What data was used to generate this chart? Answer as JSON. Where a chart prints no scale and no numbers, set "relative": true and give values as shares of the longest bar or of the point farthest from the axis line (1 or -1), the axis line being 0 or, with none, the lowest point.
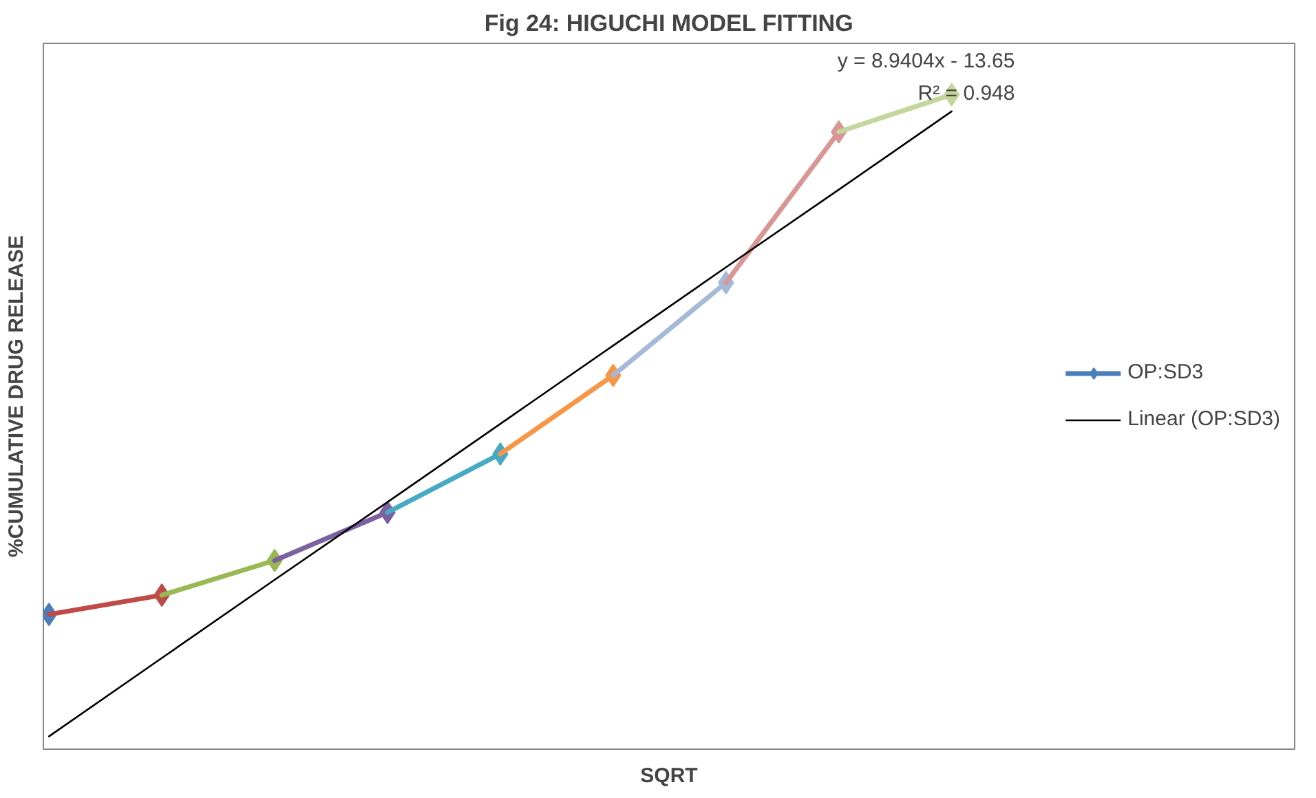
{
  "chart_data": {
    "type": "line",
    "title": "Fig 24: HIGUCHI MODEL FITTING",
    "xlabel": "SQRT",
    "ylabel": "%CUMULATIVE DRUG RELEASE",
    "relative": true,
    "marker": "diamond",
    "legend": "right",
    "grid": false,
    "categories": [
      null,
      null,
      null,
      null,
      null,
      null,
      null,
      null,
      null
    ],
    "series": [
      {
        "name": "OP:SD3",
        "color": "#4a7ebb",
        "values": [
          0.19,
          null,
          null,
          null,
          null,
          null,
          null,
          null,
          null
        ]
      },
      {
        "color": "#be4b48",
        "values": [
          0.19,
          0.22,
          null,
          null,
          null,
          null,
          null,
          null,
          null
        ]
      },
      {
        "color": "#98b954",
        "values": [
          null,
          0.22,
          0.274,
          null,
          null,
          null,
          null,
          null,
          null
        ]
      },
      {
        "color": "#7d60a0",
        "values": [
          null,
          null,
          0.274,
          0.349,
          null,
          null,
          null,
          null,
          null
        ]
      },
      {
        "color": "#46aac5",
        "values": [
          null,
          null,
          null,
          0.349,
          0.44,
          null,
          null,
          null,
          null
        ]
      },
      {
        "color": "#f79646",
        "values": [
          null,
          null,
          null,
          null,
          0.44,
          0.5625,
          null,
          null,
          null
        ]
      },
      {
        "color": "#a5b9d8",
        "values": [
          null,
          null,
          null,
          null,
          null,
          0.5625,
          0.707,
          null,
          null
        ]
      },
      {
        "color": "#d99694",
        "values": [
          null,
          null,
          null,
          null,
          null,
          null,
          0.707,
          0.942,
          null
        ]
      },
      {
        "color": "#c3d69b",
        "values": [
          null,
          null,
          null,
          null,
          null,
          null,
          null,
          0.942,
          1.0
        ]
      },
      {
        "name": "Linear (OP:SD3)",
        "color": "#000000",
        "values": [
          0,
          0.122,
          0.244,
          0.365,
          0.487,
          0.609,
          0.731,
          0.852,
          0.974
        ],
        "marker": "none"
      }
    ],
    "annotations": [
      "y = 8.9404x - 13.65",
      "R² = 0.948"
    ]
  }
}
